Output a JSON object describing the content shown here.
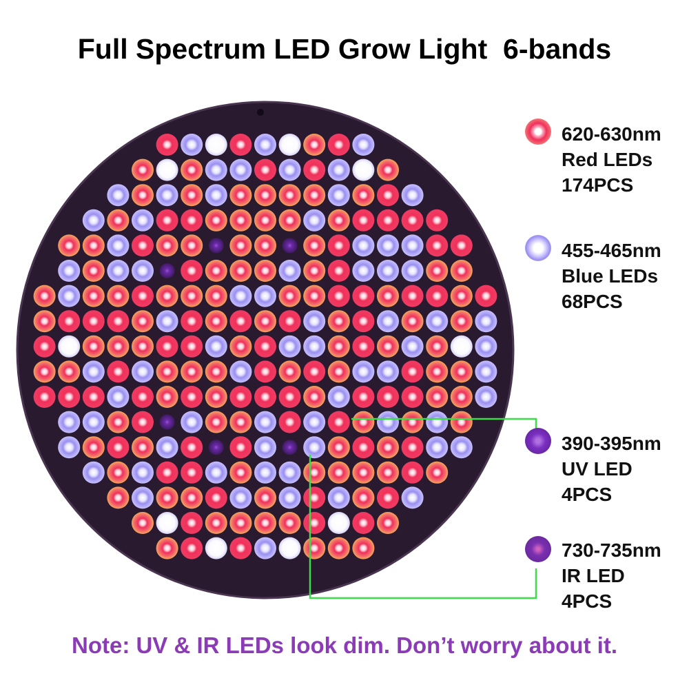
{
  "title": "Full Spectrum LED Grow Light  6-bands",
  "legend": [
    {
      "wavelength": "620-630nm",
      "name": "Red LEDs",
      "count": "174PCS",
      "color": "#f03a5f",
      "icon": "red-led-icon"
    },
    {
      "wavelength": "455-465nm",
      "name": "Blue LEDs",
      "count": "68PCS",
      "color": "#9b8ff0",
      "icon": "blue-led-icon"
    },
    {
      "wavelength": "390-395nm",
      "name": "UV LED",
      "count": "4PCS",
      "color": "#7a2fc0",
      "icon": "uv-led-icon"
    },
    {
      "wavelength": "730-735nm",
      "name": "IR LED",
      "count": "4PCS",
      "color": "#6e2aa8",
      "icon": "ir-led-icon"
    }
  ],
  "note": "Note: UV & IR LEDs look dim. Don’t worry about it.",
  "colors": {
    "panel": "#2a1a30",
    "connector": "#3ddc4a",
    "note": "#8a3bb5"
  }
}
